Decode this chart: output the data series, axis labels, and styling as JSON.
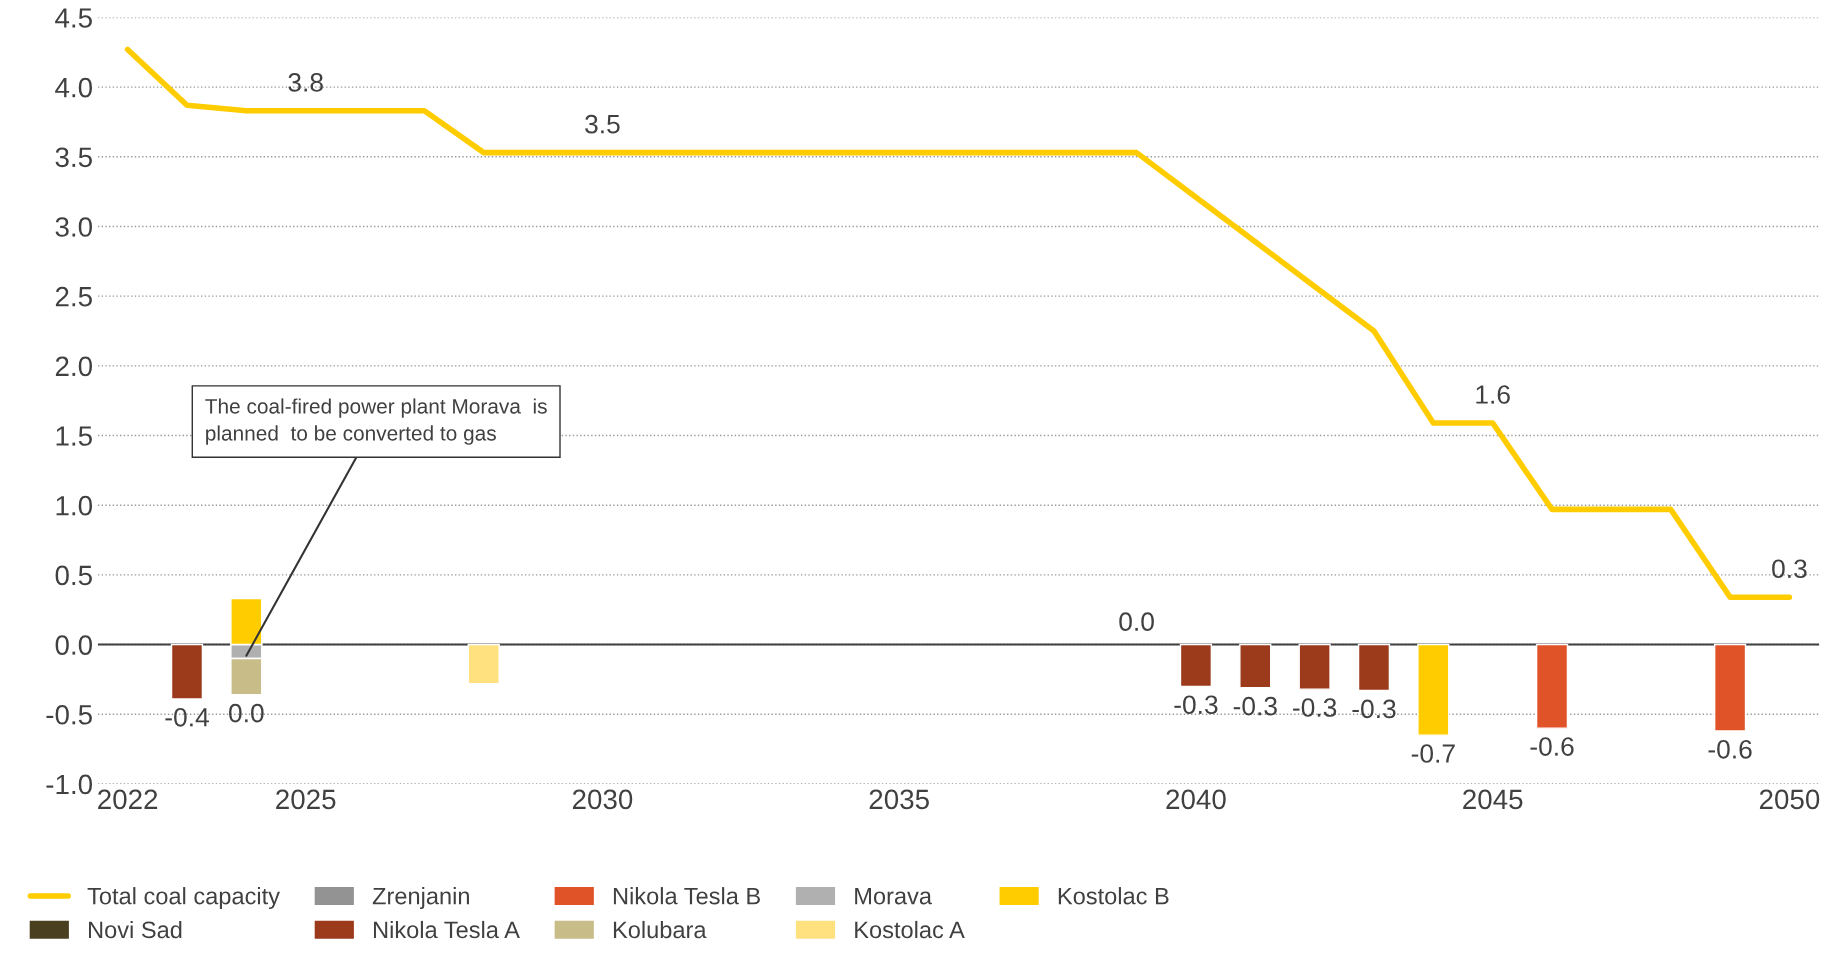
{
  "chart_data": {
    "type": "bar",
    "stacked": true,
    "x": [
      2022,
      2023,
      2024,
      2025,
      2026,
      2027,
      2028,
      2029,
      2030,
      2031,
      2032,
      2033,
      2034,
      2035,
      2036,
      2037,
      2038,
      2039,
      2040,
      2041,
      2042,
      2043,
      2044,
      2045,
      2046,
      2047,
      2048,
      2049,
      2050
    ],
    "series": [
      {
        "name": "Total coal capacity",
        "type": "line",
        "color": "#ffcc00",
        "values": [
          4.27,
          3.87,
          3.83,
          3.83,
          3.83,
          3.83,
          3.53,
          3.53,
          3.53,
          3.53,
          3.53,
          3.53,
          3.53,
          3.53,
          3.53,
          3.53,
          3.53,
          3.53,
          3.21,
          2.89,
          2.57,
          2.25,
          1.59,
          1.59,
          0.97,
          0.97,
          0.97,
          0.34,
          0.34
        ],
        "value_labels": [
          null,
          null,
          null,
          "3.8",
          null,
          null,
          null,
          null,
          "3.5",
          null,
          null,
          null,
          null,
          null,
          null,
          null,
          null,
          null,
          null,
          null,
          null,
          null,
          null,
          "1.6",
          null,
          null,
          null,
          null,
          "0.3"
        ]
      },
      {
        "name": "Zrenjanin",
        "color": "#939393",
        "values": [
          null,
          null,
          null,
          null,
          null,
          null,
          null,
          null,
          null,
          null,
          null,
          null,
          null,
          null,
          null,
          null,
          null,
          null,
          null,
          null,
          null,
          null,
          null,
          null,
          null,
          null,
          null,
          null,
          null
        ]
      },
      {
        "name": "Nikola Tesla B",
        "color": "#e05227",
        "values": [
          null,
          null,
          null,
          null,
          null,
          null,
          null,
          null,
          null,
          null,
          null,
          null,
          null,
          null,
          null,
          null,
          null,
          null,
          null,
          null,
          null,
          null,
          null,
          null,
          -0.6,
          null,
          null,
          -0.62,
          null
        ]
      },
      {
        "name": "Morava",
        "color": "#b0b0b0",
        "values": [
          null,
          null,
          -0.1,
          null,
          null,
          null,
          null,
          null,
          null,
          null,
          null,
          null,
          null,
          null,
          null,
          null,
          null,
          null,
          null,
          null,
          null,
          null,
          null,
          null,
          null,
          null,
          null,
          null,
          null
        ]
      },
      {
        "name": "Kostolac B",
        "color": "#ffcc00",
        "values": [
          null,
          null,
          0.33,
          null,
          null,
          null,
          null,
          null,
          null,
          null,
          null,
          null,
          null,
          null,
          null,
          null,
          null,
          null,
          null,
          null,
          null,
          null,
          -0.65,
          null,
          null,
          null,
          null,
          null,
          null
        ]
      },
      {
        "name": "Novi Sad",
        "color": "#4a3f1f",
        "values": [
          null,
          null,
          null,
          null,
          null,
          null,
          null,
          null,
          null,
          null,
          null,
          null,
          null,
          null,
          null,
          null,
          null,
          null,
          null,
          null,
          null,
          null,
          null,
          null,
          null,
          null,
          null,
          null,
          null
        ]
      },
      {
        "name": "Nikola Tesla A",
        "color": "#9c3a1c",
        "values": [
          null,
          -0.39,
          null,
          null,
          null,
          null,
          null,
          null,
          null,
          null,
          null,
          null,
          null,
          null,
          null,
          null,
          null,
          null,
          -0.3,
          -0.31,
          -0.32,
          -0.33,
          null,
          null,
          null,
          null,
          null,
          null,
          null
        ]
      },
      {
        "name": "Kolubara",
        "color": "#c8bc88",
        "values": [
          null,
          null,
          -0.26,
          null,
          null,
          null,
          null,
          null,
          null,
          null,
          null,
          null,
          null,
          null,
          null,
          null,
          null,
          null,
          null,
          null,
          null,
          null,
          null,
          null,
          null,
          null,
          null,
          null,
          null
        ]
      },
      {
        "name": "Kostolac A",
        "color": "#ffe17f",
        "values": [
          null,
          null,
          null,
          null,
          null,
          null,
          -0.28,
          null,
          null,
          null,
          null,
          null,
          null,
          null,
          null,
          null,
          null,
          null,
          null,
          null,
          null,
          null,
          null,
          null,
          null,
          null,
          null,
          null,
          null
        ]
      }
    ],
    "totals": [
      null,
      "-0.4",
      "0.0",
      null,
      null,
      null,
      null,
      null,
      null,
      null,
      null,
      null,
      null,
      null,
      null,
      null,
      null,
      "0.0",
      "-0.3",
      "-0.3",
      "-0.3",
      "-0.3",
      "-0.7",
      null,
      "-0.6",
      null,
      null,
      "-0.6",
      null
    ],
    "xlim": [
      2021.5,
      2050.5
    ],
    "xticks": [
      2022,
      2025,
      2030,
      2035,
      2040,
      2045,
      2050
    ],
    "ylim": [
      -1.0,
      4.5
    ],
    "yticks": [
      {
        "value": -1.0,
        "label": "-1.0"
      },
      {
        "value": -0.5,
        "label": "-0.5"
      },
      {
        "value": 0.0,
        "label": "0.0"
      },
      {
        "value": 0.5,
        "label": "0.5"
      },
      {
        "value": 1.0,
        "label": "1.0"
      },
      {
        "value": 1.5,
        "label": "1.5"
      },
      {
        "value": 2.0,
        "label": "2.0"
      },
      {
        "value": 2.5,
        "label": "2.5"
      },
      {
        "value": 3.0,
        "label": "3.0"
      },
      {
        "value": 3.5,
        "label": "3.5"
      },
      {
        "value": 4.0,
        "label": "4.0"
      },
      {
        "value": 4.5,
        "label": "4.5"
      }
    ],
    "ref_lines": [
      {
        "axis": "y",
        "value": 0.0,
        "color": "#404040"
      }
    ],
    "annotations": [
      {
        "text": "The coal-fired power plant Morava  is\nplanned  to be converted to gas",
        "x": 2024,
        "y": -0.08
      }
    ],
    "grid": "y",
    "legend": "bottom"
  }
}
